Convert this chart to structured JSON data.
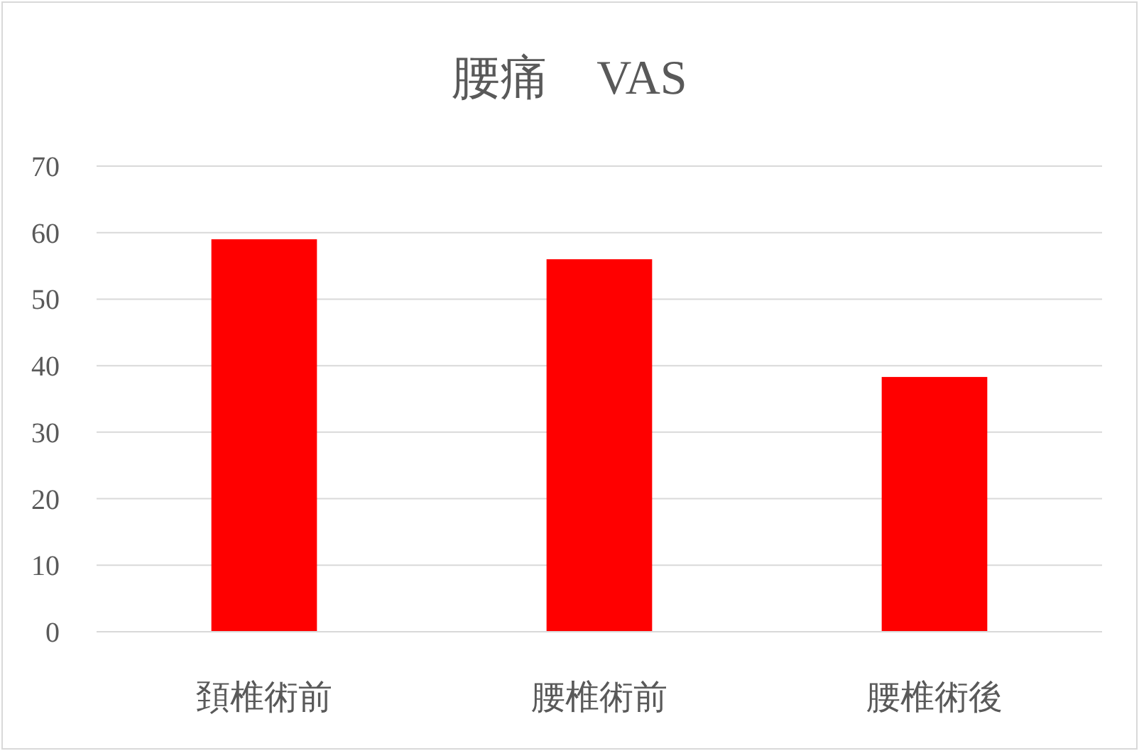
{
  "chart_data": {
    "type": "bar",
    "title": "腰痛　VAS",
    "categories": [
      "頚椎術前",
      "腰椎術前",
      "腰椎術後"
    ],
    "values": [
      59.0,
      56.0,
      38.3
    ],
    "color": "#ff0000",
    "ylim": [
      0,
      70
    ],
    "yticks": [
      0,
      10,
      20,
      30,
      40,
      50,
      60,
      70
    ],
    "grid": "y"
  }
}
